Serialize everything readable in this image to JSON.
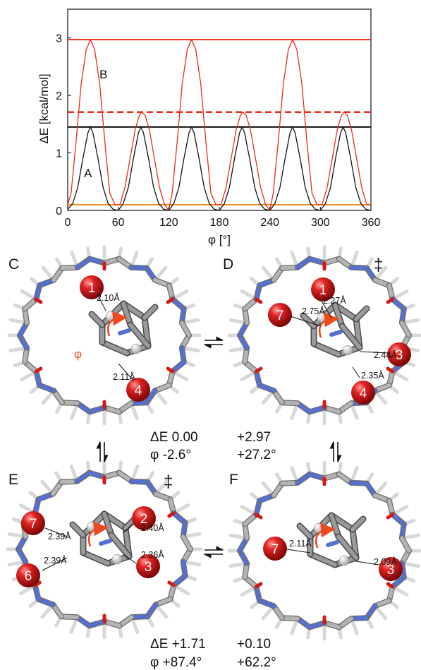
{
  "chart_data": {
    "type": "line",
    "title": "",
    "xlabel": "φ [°]",
    "ylabel": "ΔE [kcal/mol]",
    "xlim": [
      0,
      360
    ],
    "ylim": [
      0,
      3.5
    ],
    "x_ticks": [
      0,
      60,
      120,
      180,
      240,
      300,
      360
    ],
    "y_ticks": [
      0,
      1,
      2,
      3
    ],
    "grid": false,
    "legend": "none",
    "curve_labels": [
      "A",
      "B"
    ],
    "series": [
      {
        "color": "#111111",
        "curve": [
          [
            0,
            0.02
          ],
          [
            6,
            0.12
          ],
          [
            12,
            0.4
          ],
          [
            18,
            0.9
          ],
          [
            24,
            1.35
          ],
          [
            27,
            1.45
          ],
          [
            30,
            1.35
          ],
          [
            36,
            0.9
          ],
          [
            42,
            0.4
          ],
          [
            48,
            0.12
          ],
          [
            54,
            0.02
          ],
          [
            60,
            0.0
          ],
          [
            66,
            0.12
          ],
          [
            72,
            0.4
          ],
          [
            78,
            0.9
          ],
          [
            84,
            1.35
          ],
          [
            87,
            1.45
          ],
          [
            90,
            1.35
          ],
          [
            96,
            0.9
          ],
          [
            102,
            0.4
          ],
          [
            108,
            0.12
          ],
          [
            114,
            0.02
          ],
          [
            120,
            0.0
          ],
          [
            126,
            0.12
          ],
          [
            132,
            0.4
          ],
          [
            138,
            0.9
          ],
          [
            144,
            1.35
          ],
          [
            147,
            1.45
          ],
          [
            150,
            1.35
          ],
          [
            156,
            0.9
          ],
          [
            162,
            0.4
          ],
          [
            168,
            0.12
          ],
          [
            174,
            0.02
          ],
          [
            180,
            0.0
          ],
          [
            186,
            0.12
          ],
          [
            192,
            0.4
          ],
          [
            198,
            0.9
          ],
          [
            204,
            1.35
          ],
          [
            207,
            1.45
          ],
          [
            210,
            1.35
          ],
          [
            216,
            0.9
          ],
          [
            222,
            0.4
          ],
          [
            228,
            0.12
          ],
          [
            234,
            0.02
          ],
          [
            240,
            0.0
          ],
          [
            246,
            0.12
          ],
          [
            252,
            0.4
          ],
          [
            258,
            0.9
          ],
          [
            264,
            1.35
          ],
          [
            267,
            1.45
          ],
          [
            270,
            1.35
          ],
          [
            276,
            0.9
          ],
          [
            282,
            0.4
          ],
          [
            288,
            0.12
          ],
          [
            294,
            0.02
          ],
          [
            300,
            0.0
          ],
          [
            306,
            0.12
          ],
          [
            312,
            0.4
          ],
          [
            318,
            0.9
          ],
          [
            324,
            1.35
          ],
          [
            327,
            1.45
          ],
          [
            330,
            1.35
          ],
          [
            336,
            0.9
          ],
          [
            342,
            0.4
          ],
          [
            348,
            0.12
          ],
          [
            354,
            0.02
          ],
          [
            360,
            0.0
          ]
        ]
      },
      {
        "color": "#ee2a1a",
        "curve": [
          [
            0,
            0.1
          ],
          [
            4,
            0.3
          ],
          [
            10,
            1.2
          ],
          [
            16,
            2.2
          ],
          [
            22,
            2.8
          ],
          [
            27,
            2.97
          ],
          [
            32,
            2.8
          ],
          [
            38,
            2.2
          ],
          [
            44,
            1.2
          ],
          [
            50,
            0.3
          ],
          [
            56,
            0.1
          ],
          [
            62,
            0.1
          ],
          [
            68,
            0.4
          ],
          [
            74,
            0.9
          ],
          [
            80,
            1.4
          ],
          [
            85,
            1.65
          ],
          [
            88,
            1.71
          ],
          [
            92,
            1.65
          ],
          [
            97,
            1.4
          ],
          [
            103,
            0.9
          ],
          [
            109,
            0.4
          ],
          [
            115,
            0.1
          ],
          [
            120,
            0.0
          ],
          [
            124,
            0.3
          ],
          [
            130,
            1.2
          ],
          [
            136,
            2.2
          ],
          [
            142,
            2.8
          ],
          [
            147,
            2.97
          ],
          [
            152,
            2.8
          ],
          [
            158,
            2.2
          ],
          [
            164,
            1.2
          ],
          [
            170,
            0.3
          ],
          [
            176,
            0.1
          ],
          [
            182,
            0.1
          ],
          [
            188,
            0.4
          ],
          [
            194,
            0.9
          ],
          [
            200,
            1.4
          ],
          [
            205,
            1.65
          ],
          [
            208,
            1.71
          ],
          [
            212,
            1.65
          ],
          [
            217,
            1.4
          ],
          [
            223,
            0.9
          ],
          [
            229,
            0.4
          ],
          [
            235,
            0.1
          ],
          [
            240,
            0.0
          ],
          [
            244,
            0.3
          ],
          [
            250,
            1.2
          ],
          [
            256,
            2.2
          ],
          [
            262,
            2.8
          ],
          [
            267,
            2.97
          ],
          [
            272,
            2.8
          ],
          [
            278,
            2.2
          ],
          [
            284,
            1.2
          ],
          [
            290,
            0.3
          ],
          [
            296,
            0.1
          ],
          [
            302,
            0.1
          ],
          [
            308,
            0.4
          ],
          [
            314,
            0.9
          ],
          [
            320,
            1.4
          ],
          [
            325,
            1.65
          ],
          [
            328,
            1.71
          ],
          [
            332,
            1.65
          ],
          [
            337,
            1.4
          ],
          [
            343,
            0.9
          ],
          [
            349,
            0.4
          ],
          [
            355,
            0.1
          ],
          [
            360,
            0.1
          ]
        ]
      }
    ],
    "reference_lines": [
      {
        "y": 2.97,
        "color": "#ee2a1a",
        "style": "solid"
      },
      {
        "y": 1.71,
        "color": "#ee2a1a",
        "style": "dashed"
      },
      {
        "y": 1.45,
        "color": "#111111",
        "style": "solid"
      },
      {
        "y": 0.1,
        "color": "#f08a1c",
        "style": "solid"
      }
    ]
  },
  "panels": {
    "C": {
      "letter": "C",
      "balls": [
        "1",
        "4"
      ],
      "distances": [
        "2.10Å",
        "2.11Å"
      ],
      "phi_symbol": "φ"
    },
    "D": {
      "letter": "D",
      "ts_mark": "‡",
      "balls": [
        "1",
        "7",
        "4"
      ],
      "distances": [
        "2.27Å",
        "2.75Å",
        "2.44Å",
        "2.35Å"
      ],
      "ball_partial": "3"
    },
    "E": {
      "letter": "E",
      "ts_mark": "‡",
      "balls": [
        "7",
        "2",
        "6",
        "3"
      ],
      "distances": [
        "2.39Å",
        "2.39Å",
        "2.40Å",
        "2.36Å"
      ]
    },
    "F": {
      "letter": "F",
      "balls": [
        "7",
        "3"
      ],
      "distances": [
        "2.11Å",
        "2.09Å"
      ]
    }
  },
  "annotations": {
    "cd_energy_label": "ΔE 0.00",
    "cd_phi": "φ -2.6°",
    "d_energy": "+2.97",
    "d_phi": "+27.2°",
    "ef_energy_label": "ΔE +1.71",
    "ef_phi": "φ +87.4°",
    "f_energy": "+0.10",
    "f_phi": "+62.2°"
  },
  "colors": {
    "ring_carbon": "#b4b4b4",
    "ring_nitrogen": "#5570d0",
    "oxygen": "#d11a1a",
    "ball": "#c01818",
    "arrow": "#ee4a20"
  }
}
